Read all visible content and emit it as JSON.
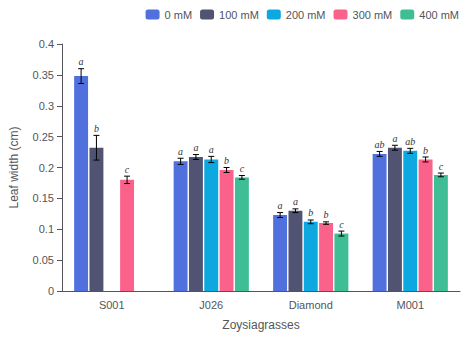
{
  "chart_data": {
    "type": "bar",
    "xlabel": "Zoysiagrasses",
    "ylabel": "Leaf width (cm)",
    "categories": [
      "S001",
      "J026",
      "Diamond",
      "M001"
    ],
    "series": [
      {
        "name": "0 mM",
        "values": [
          0.348,
          0.21,
          0.123,
          0.222
        ],
        "errors": [
          0.012,
          0.005,
          0.004,
          0.004
        ],
        "annotations": [
          "a",
          "a",
          "a",
          "ab"
        ]
      },
      {
        "name": "100 mM",
        "values": [
          0.232,
          0.217,
          0.13,
          0.232
        ],
        "errors": [
          0.02,
          0.004,
          0.003,
          0.004
        ],
        "annotations": [
          "b",
          "a",
          "a",
          "a"
        ]
      },
      {
        "name": "200 mM",
        "values": [
          null,
          0.213,
          0.112,
          0.227
        ],
        "errors": [
          null,
          0.005,
          0.003,
          0.004
        ],
        "annotations": [
          null,
          "a",
          "b",
          "ab"
        ]
      },
      {
        "name": "300 mM",
        "values": [
          0.18,
          0.196,
          0.11,
          0.213
        ],
        "errors": [
          0.006,
          0.004,
          0.002,
          0.004
        ],
        "annotations": [
          "c",
          "b",
          "b",
          "b"
        ]
      },
      {
        "name": "400 mM",
        "values": [
          null,
          0.184,
          0.093,
          0.188
        ],
        "errors": [
          null,
          0.003,
          0.004,
          0.003
        ],
        "annotations": [
          null,
          "c",
          "c",
          "c"
        ]
      }
    ],
    "ylim": [
      0,
      0.4
    ],
    "yticks": [
      0,
      0.05,
      0.1,
      0.15,
      0.2,
      0.25,
      0.3,
      0.35,
      0.4
    ],
    "grid": false,
    "legend": "upper right"
  }
}
